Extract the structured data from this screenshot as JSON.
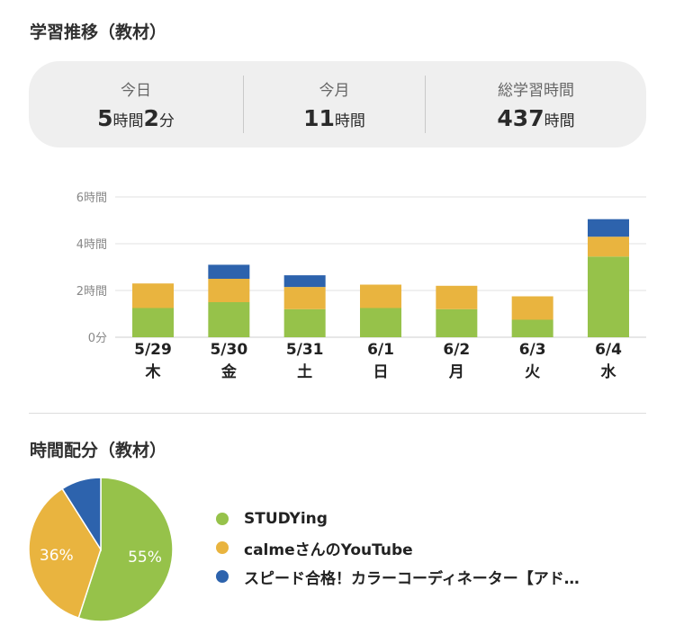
{
  "sections": {
    "trend_title": "学習推移（教材）",
    "distribution_title": "時間配分（教材）"
  },
  "summary": {
    "today": {
      "label": "今日",
      "h_num": "5",
      "h_unit": "時間",
      "m_num": "2",
      "m_unit": "分"
    },
    "month": {
      "label": "今月",
      "num": "11",
      "unit": "時間"
    },
    "total": {
      "label": "総学習時間",
      "num": "437",
      "unit": "時間"
    }
  },
  "colors": {
    "green": "#96c24a",
    "yellow": "#e9b43f",
    "blue": "#2d63ad"
  },
  "chart_data": {
    "type": "bar",
    "stacked": true,
    "categories": [
      "5/29",
      "5/30",
      "5/31",
      "6/1",
      "6/2",
      "6/3",
      "6/4"
    ],
    "weekdays": [
      "木",
      "金",
      "土",
      "日",
      "月",
      "火",
      "水"
    ],
    "y_tick_labels": [
      "0分",
      "2時間",
      "4時間",
      "6時間"
    ],
    "ylim": [
      0,
      6
    ],
    "grid": true,
    "series": [
      {
        "color": "#96c24a",
        "values": [
          1.25,
          1.5,
          1.2,
          1.25,
          1.2,
          0.75,
          3.45
        ]
      },
      {
        "color": "#e9b43f",
        "values": [
          1.05,
          1.0,
          0.95,
          1.0,
          1.0,
          1.0,
          0.85
        ]
      },
      {
        "color": "#2d63ad",
        "values": [
          0,
          0.6,
          0.5,
          0,
          0,
          0,
          0.75
        ]
      }
    ]
  },
  "pie": {
    "slices": [
      {
        "pct": 55,
        "label": "55%",
        "color": "#96c24a"
      },
      {
        "pct": 36,
        "label": "36%",
        "color": "#e9b43f"
      },
      {
        "pct": 9,
        "label": "",
        "color": "#2d63ad"
      }
    ]
  },
  "legend": [
    {
      "label": "STUDYing",
      "color": "#96c24a"
    },
    {
      "label": "calmeさんのYouTube",
      "color": "#e9b43f"
    },
    {
      "label": "スピード合格！カラーコーディネーター【アド…",
      "color": "#2d63ad"
    }
  ]
}
